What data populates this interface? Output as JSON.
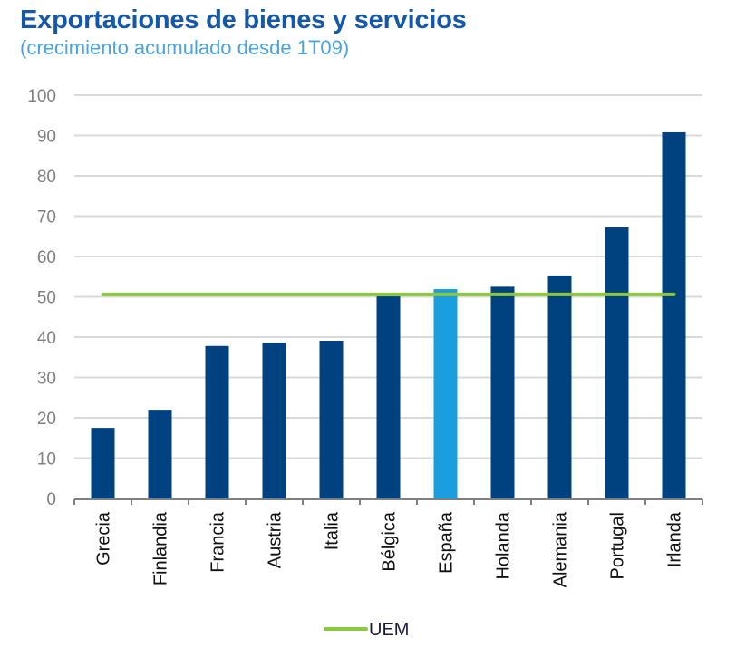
{
  "chart_data": {
    "type": "bar",
    "title": "Exportaciones de bienes y servicios",
    "subtitle": "(crecimiento acumulado desde 1T09)",
    "xlabel": "",
    "ylabel": "",
    "ylim": [
      0,
      100
    ],
    "yticks": [
      0,
      10,
      20,
      30,
      40,
      50,
      60,
      70,
      80,
      90,
      100
    ],
    "grid": true,
    "categories": [
      "Grecia",
      "Finlandia",
      "Francia",
      "Austria",
      "Italia",
      "Bélgica",
      "España",
      "Holanda",
      "Alemania",
      "Portugal",
      "Irlanda"
    ],
    "series": [
      {
        "name": "Exportaciones",
        "values": [
          17.5,
          22.0,
          37.8,
          38.6,
          39.1,
          50.1,
          51.9,
          52.5,
          55.3,
          67.2,
          90.8
        ],
        "color": "#00427f",
        "highlight": {
          "category": "España",
          "color": "#1b9ee0"
        }
      },
      {
        "name": "UEM",
        "type": "line",
        "value": 50.6,
        "color": "#8dc63f"
      }
    ],
    "legend": {
      "position": "bottom-center",
      "entries": [
        "UEM"
      ]
    }
  }
}
